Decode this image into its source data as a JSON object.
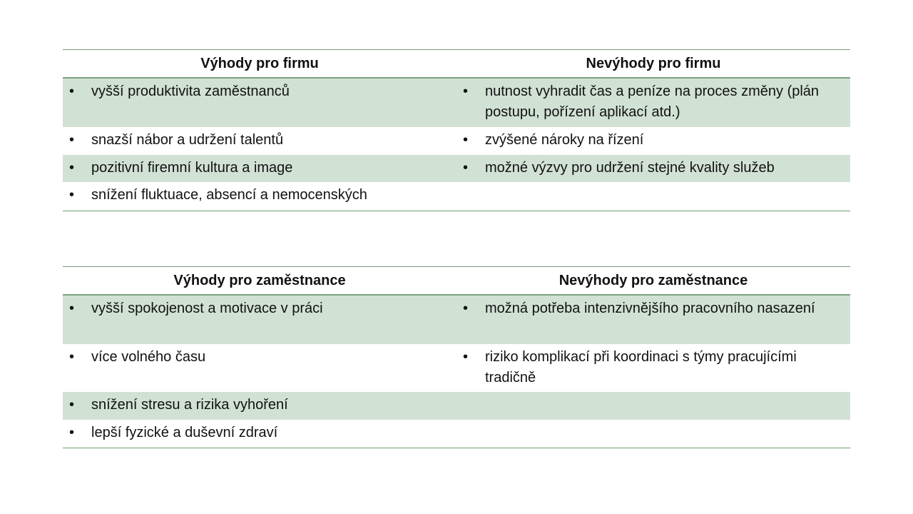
{
  "colors": {
    "band": "#d1e2d5",
    "rule": "#7aa37f"
  },
  "tables": [
    {
      "headers": [
        "Výhody pro firmu",
        "Nevýhody pro firmu"
      ],
      "rows": [
        [
          "vyšší produktivita zaměstnanců",
          "nutnost vyhradit čas a peníze na proces změny (plán postupu, pořízení aplikací atd.)"
        ],
        [
          "snazší nábor a udržení talentů",
          "zvýšené nároky na řízení"
        ],
        [
          "pozitivní firemní kultura a image",
          "možné výzvy pro udržení stejné kvality služeb"
        ],
        [
          "snížení fluktuace, absencí a nemocenských",
          ""
        ]
      ]
    },
    {
      "headers": [
        "Výhody pro zaměstnance",
        "Nevýhody pro zaměstnance"
      ],
      "rows": [
        [
          "vyšší spokojenost a motivace v práci",
          "možná potřeba intenzivnějšího pracovního nasazení"
        ],
        [
          "více volného času",
          "riziko komplikací při koordinaci s týmy pracujícími tradičně"
        ],
        [
          "snížení stresu a rizika vyhoření",
          ""
        ],
        [
          "lepší fyzické a duševní zdraví",
          ""
        ]
      ]
    }
  ],
  "bullet_glyph": "•"
}
